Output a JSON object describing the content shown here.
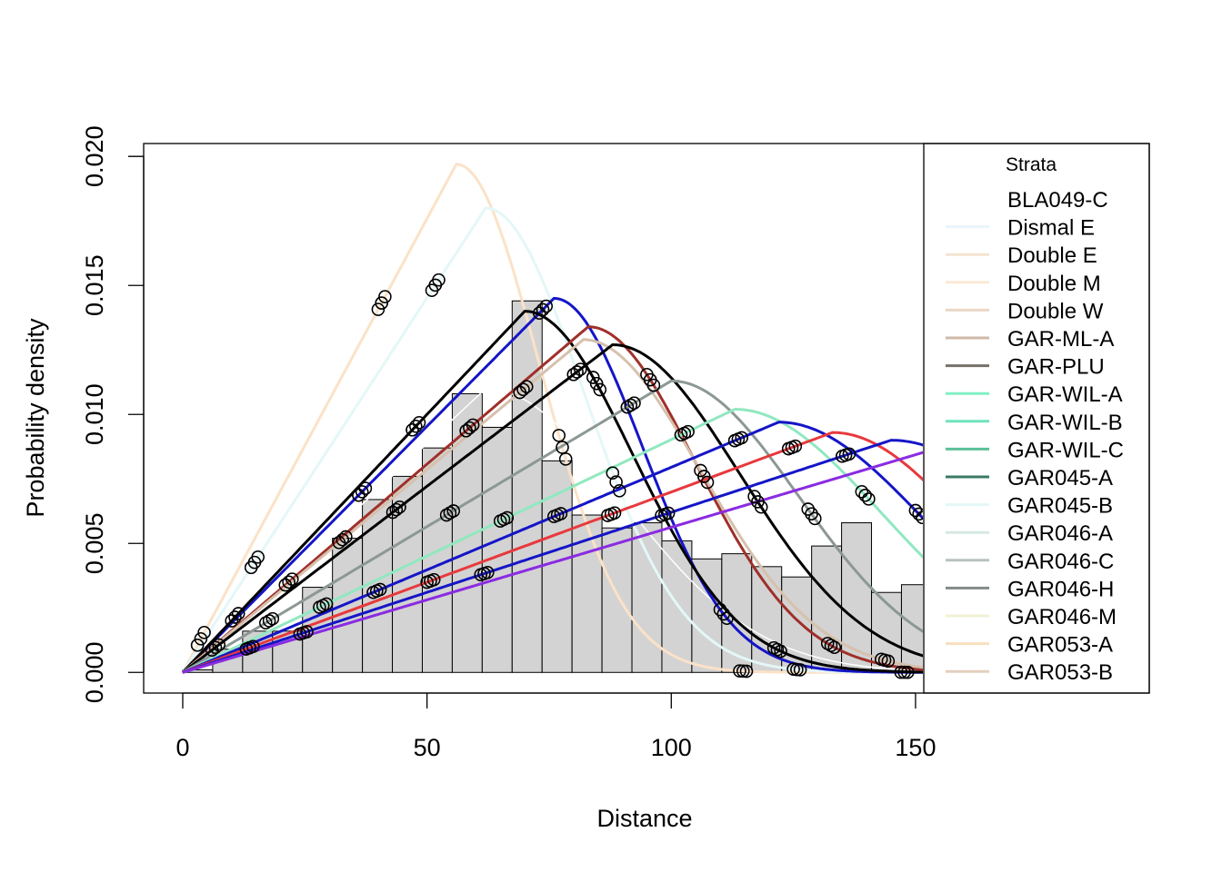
{
  "chart_data": {
    "type": "line",
    "title": "",
    "xlabel": "Distance",
    "ylabel": "Probability density",
    "xlim": [
      -8,
      151.5
    ],
    "ylim": [
      -0.0008,
      0.0205
    ],
    "x_ticks": [
      "0",
      "50",
      "100",
      "150"
    ],
    "x_tick_values": [
      0,
      50,
      100,
      150
    ],
    "y_ticks": [
      "0.000",
      "0.005",
      "0.010",
      "0.015",
      "0.020"
    ],
    "y_tick_values": [
      0,
      0.005,
      0.01,
      0.015,
      0.02
    ],
    "grid": false,
    "legend": {
      "title": "Strata",
      "placement": "right",
      "entries": [
        {
          "label": "BLA049-C",
          "color": "#ffffff"
        },
        {
          "label": "Dismal E",
          "color": "#eaf4fb"
        },
        {
          "label": "Double E",
          "color": "#f4e4d0"
        },
        {
          "label": "Double M",
          "color": "#fbe9d6"
        },
        {
          "label": "Double W",
          "color": "#ead7c6"
        },
        {
          "label": "GAR-ML-A",
          "color": "#cfb9a8"
        },
        {
          "label": "GAR-PLU",
          "color": "#777068"
        },
        {
          "label": "GAR-WIL-A",
          "color": "#7ff0c4"
        },
        {
          "label": "GAR-WIL-B",
          "color": "#6fe3bb"
        },
        {
          "label": "GAR-WIL-C",
          "color": "#5cbf99"
        },
        {
          "label": "GAR045-A",
          "color": "#3a7a63"
        },
        {
          "label": "GAR045-B",
          "color": "#e4f7f7"
        },
        {
          "label": "GAR046-A",
          "color": "#d5e8e4"
        },
        {
          "label": "GAR046-C",
          "color": "#b9c2bf"
        },
        {
          "label": "GAR046-H",
          "color": "#838a87"
        },
        {
          "label": "GAR046-M",
          "color": "#f2f1d4"
        },
        {
          "label": "GAR053-A",
          "color": "#f7dfbe"
        },
        {
          "label": "GAR053-B",
          "color": "#e3cfbd"
        }
      ]
    },
    "histogram": {
      "bin_width": 6.13,
      "bin_start": 0,
      "values": [
        0.0001,
        0.0009,
        0.0016,
        0.0016,
        0.0033,
        0.0052,
        0.0067,
        0.0076,
        0.0087,
        0.0108,
        0.0095,
        0.0144,
        0.0082,
        0.0061,
        0.0056,
        0.0058,
        0.0051,
        0.0044,
        0.0046,
        0.0041,
        0.0037,
        0.0049,
        0.0058,
        0.0031,
        0.0034
      ],
      "fill": "#d3d3d3"
    },
    "series": [
      {
        "color": "#fbe2c8",
        "peak_x": 56,
        "peak_y": 0.0197,
        "sigma": 17,
        "points": true
      },
      {
        "color": "#e4f7f7",
        "peak_x": 62,
        "peak_y": 0.018,
        "sigma": 20,
        "points": true
      },
      {
        "color": "#ffffff",
        "peak_x": 62,
        "peak_y": 0.011,
        "sigma": 28,
        "points": false
      },
      {
        "color": "#1515c8",
        "peak_x": 76,
        "peak_y": 0.0145,
        "sigma": 18,
        "points": true
      },
      {
        "color": "#000000",
        "peak_x": 70,
        "peak_y": 0.014,
        "sigma": 22,
        "points": true
      },
      {
        "color": "#a0302a",
        "peak_x": 83,
        "peak_y": 0.0134,
        "sigma": 22,
        "points": true
      },
      {
        "color": "#d6c1ad",
        "peak_x": 82,
        "peak_y": 0.0129,
        "sigma": 24,
        "points": true
      },
      {
        "color": "#000000",
        "peak_x": 88,
        "peak_y": 0.0127,
        "sigma": 26,
        "points": true
      },
      {
        "color": "#8c9894",
        "peak_x": 100,
        "peak_y": 0.0113,
        "sigma": 26,
        "points": true
      },
      {
        "color": "#90e8c0",
        "peak_x": 113,
        "peak_y": 0.0102,
        "sigma": 30,
        "points": true
      },
      {
        "color": "#1515c8",
        "peak_x": 122,
        "peak_y": 0.0097,
        "sigma": 30,
        "points": true
      },
      {
        "color": "#e8393d",
        "peak_x": 133,
        "peak_y": 0.0093,
        "sigma": 28,
        "points": true
      },
      {
        "color": "#1515c8",
        "peak_x": 145,
        "peak_y": 0.009,
        "sigma": 32,
        "points": true
      },
      {
        "color": "#8a2be2",
        "peak_x": 160,
        "peak_y": 0.009,
        "sigma": 30,
        "points": false
      }
    ]
  }
}
